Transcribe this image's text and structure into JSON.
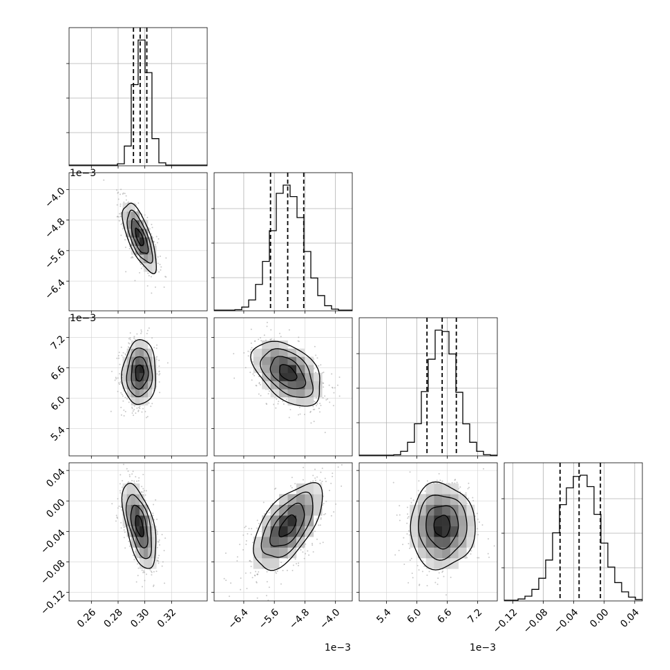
{
  "chart_data": {
    "type": "corner",
    "grid": true,
    "parameters": [
      {
        "range": [
          0.2433,
          0.3467
        ],
        "ticks": [
          0.26,
          0.28,
          0.3,
          0.32
        ],
        "tick_labels": [
          "0.26",
          "0.28",
          "0.30",
          "0.32"
        ],
        "offset_label": "",
        "quantiles": [
          0.2915,
          0.2965,
          0.3015
        ],
        "hist_peak": 0.298,
        "hist_sigma": 0.0055
      },
      {
        "range": [
          -7.176,
          -3.56
        ],
        "ticks": [
          -6.4,
          -5.6,
          -4.8,
          -4.0
        ],
        "tick_labels": [
          "−6.4",
          "−5.6",
          "−4.8",
          "−4.0"
        ],
        "offset_label": "1e−3",
        "quantiles": [
          -5.7,
          -5.25,
          -4.83
        ],
        "hist_peak": -5.25,
        "hist_sigma": 0.42
      },
      {
        "range": [
          4.86,
          7.59
        ],
        "ticks": [
          5.4,
          6.0,
          6.6,
          7.2
        ],
        "tick_labels": [
          "5.4",
          "6.0",
          "6.6",
          "7.2"
        ],
        "offset_label": "1e−3",
        "quantiles": [
          6.2,
          6.5,
          6.78
        ],
        "hist_peak": 6.5,
        "hist_sigma": 0.29
      },
      {
        "range": [
          -0.1313,
          0.0501
        ],
        "ticks": [
          -0.12,
          -0.08,
          -0.04,
          0.0,
          0.04
        ],
        "tick_labels": [
          "−0.12",
          "−0.08",
          "−0.04",
          "0.00",
          "0.04"
        ],
        "offset_label": "",
        "quantiles": [
          -0.058,
          -0.033,
          -0.005
        ],
        "hist_peak": -0.033,
        "hist_sigma": 0.026
      }
    ],
    "x_axis_offset_labels": [
      "",
      "1e−3",
      "1e−3",
      ""
    ],
    "pairs": [
      {
        "row": 1,
        "col": 0,
        "center": [
          0.296,
          -5.25
        ],
        "sigma": [
          0.0063,
          0.45
        ],
        "rho": -0.7
      },
      {
        "row": 2,
        "col": 0,
        "center": [
          0.296,
          6.5
        ],
        "sigma": [
          0.0063,
          0.32
        ],
        "rho": 0.05
      },
      {
        "row": 2,
        "col": 1,
        "center": [
          -5.25,
          6.5
        ],
        "sigma": [
          0.45,
          0.32
        ],
        "rho": -0.45
      },
      {
        "row": 3,
        "col": 0,
        "center": [
          0.296,
          -0.033
        ],
        "sigma": [
          0.0063,
          0.028
        ],
        "rho": -0.55
      },
      {
        "row": 3,
        "col": 1,
        "center": [
          -5.25,
          -0.033
        ],
        "sigma": [
          0.45,
          0.028
        ],
        "rho": 0.6
      },
      {
        "row": 3,
        "col": 2,
        "center": [
          6.5,
          -0.033
        ],
        "sigma": [
          0.32,
          0.028
        ],
        "rho": 0.0
      }
    ],
    "contour_levels_sigma": [
      0.5,
      1.0,
      1.5,
      2.0
    ]
  }
}
